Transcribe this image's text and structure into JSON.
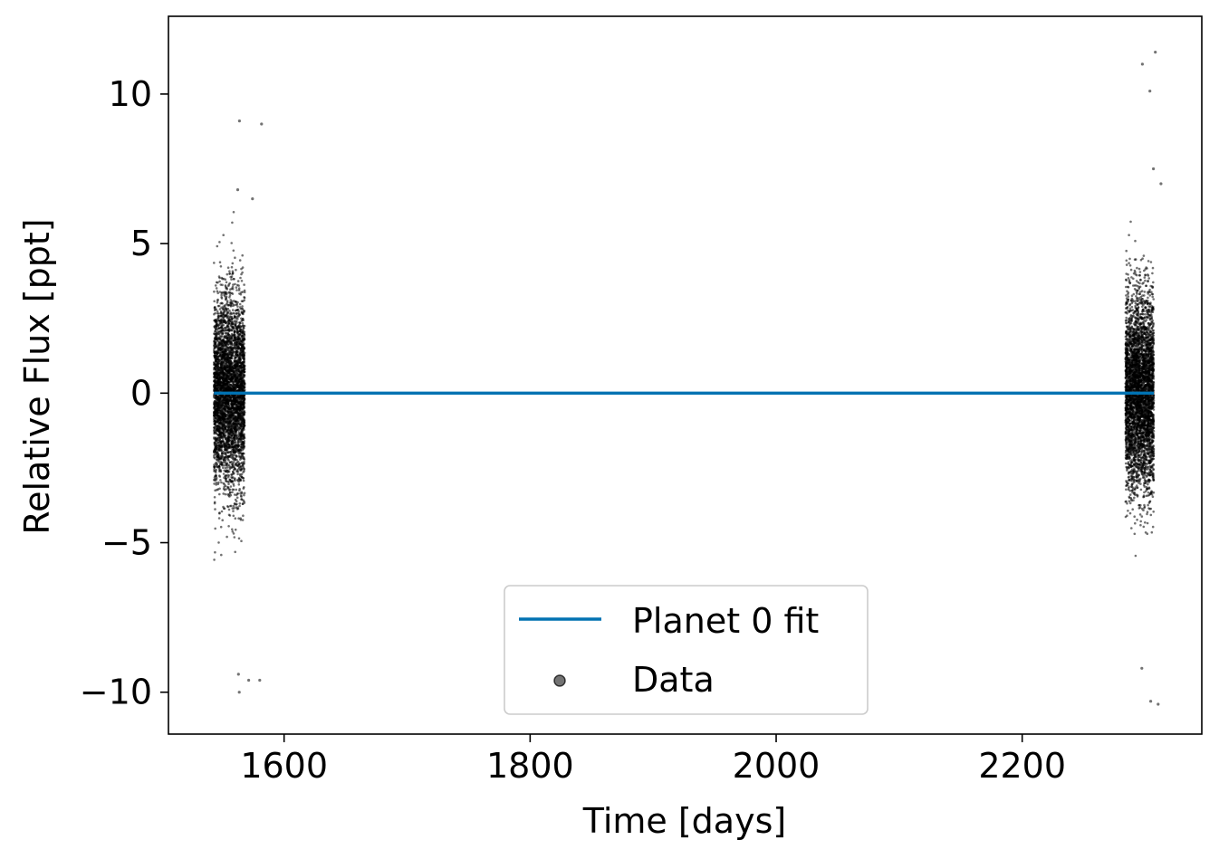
{
  "chart_data": {
    "type": "scatter",
    "xlabel": "Time [days]",
    "ylabel": "Relative Flux [ppt]",
    "xlim": [
      1506,
      2346
    ],
    "ylim": [
      -11.4,
      12.6
    ],
    "xticks": [
      1600,
      1800,
      2000,
      2200
    ],
    "xtick_labels": [
      "1600",
      "1800",
      "2000",
      "2200"
    ],
    "yticks": [
      -10,
      -5,
      0,
      5,
      10
    ],
    "ytick_labels": [
      "−10",
      "−5",
      "0",
      "5",
      "10"
    ],
    "grid": false,
    "legend": {
      "placement": "lower center",
      "entries": [
        "Planet 0 fit",
        "Data"
      ]
    },
    "series": [
      {
        "name": "Planet 0 fit",
        "kind": "line",
        "color": "#0072b2",
        "x": [
          1543,
          2307
        ],
        "y": [
          0,
          0
        ]
      },
      {
        "name": "Data",
        "kind": "scatter",
        "color": "#000000",
        "opacity": 0.55,
        "segments": [
          {
            "x_range": [
              1543,
              1568
            ],
            "approx_std": 1.6
          },
          {
            "x_range": [
              2284,
              2307
            ],
            "approx_std": 1.6
          }
        ],
        "notable_points": [
          {
            "x": 1563.7,
            "y": 9.1
          },
          {
            "x": 1581.7,
            "y": 9.0
          },
          {
            "x": 1562.3,
            "y": 6.8
          },
          {
            "x": 1574.3,
            "y": 6.5
          },
          {
            "x": 1563.6,
            "y": -10.0
          },
          {
            "x": 1562.9,
            "y": -9.4
          },
          {
            "x": 1580.2,
            "y": -9.6
          },
          {
            "x": 1571.2,
            "y": -9.6
          },
          {
            "x": 2297.7,
            "y": 11.0
          },
          {
            "x": 2308.2,
            "y": 11.4
          },
          {
            "x": 2303.8,
            "y": 10.1
          },
          {
            "x": 2306.7,
            "y": 7.5
          },
          {
            "x": 2312.8,
            "y": 7.0
          },
          {
            "x": 2304.5,
            "y": -10.3
          },
          {
            "x": 2310.5,
            "y": -10.4
          },
          {
            "x": 2297.3,
            "y": -9.2
          }
        ]
      }
    ]
  }
}
